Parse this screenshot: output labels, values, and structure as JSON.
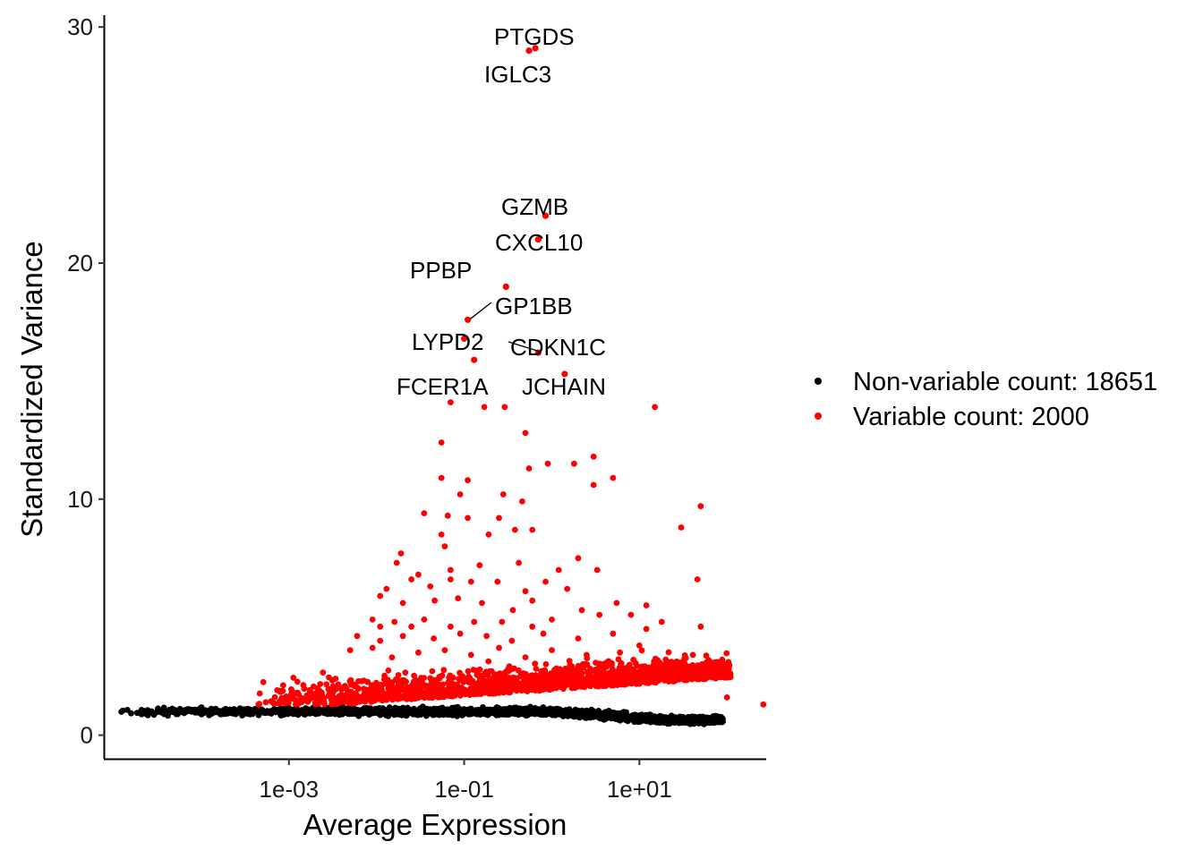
{
  "chart_data": {
    "type": "scatter",
    "xlabel": "Average Expression",
    "ylabel": "Standardized Variance",
    "x_scale": "log10",
    "xlim": [
      7.9e-06,
      280
    ],
    "ylim": [
      -1,
      30.5
    ],
    "x_ticks": [
      {
        "value": 0.001,
        "label": "1e-03"
      },
      {
        "value": 0.1,
        "label": "1e-01"
      },
      {
        "value": 10,
        "label": "1e+01"
      }
    ],
    "y_ticks": [
      {
        "value": 0,
        "label": "0"
      },
      {
        "value": 10,
        "label": "10"
      },
      {
        "value": 20,
        "label": "20"
      },
      {
        "value": 30,
        "label": "30"
      }
    ],
    "grid": false,
    "legend_position": "right",
    "colors": {
      "non_variable": "#000000",
      "variable": "#ff0000"
    },
    "series": [
      {
        "name": "Non-variable count: 18651",
        "color": "#000000",
        "count": 18651
      },
      {
        "name": "Variable count: 2000",
        "color": "#ff0000",
        "count": 2000
      }
    ],
    "labeled_points": [
      {
        "gene": "PTGDS",
        "x": 0.65,
        "y": 29.1
      },
      {
        "gene": "IGLC3",
        "x": 0.55,
        "y": 29.0
      },
      {
        "gene": "GZMB",
        "x": 0.85,
        "y": 22.0
      },
      {
        "gene": "CXCL10",
        "x": 0.7,
        "y": 21.0
      },
      {
        "gene": "PPBP",
        "x": 0.3,
        "y": 19.0
      },
      {
        "gene": "GP1BB",
        "x": 0.11,
        "y": 17.6
      },
      {
        "gene": "LYPD2",
        "x": 0.1,
        "y": 16.8
      },
      {
        "gene": "CDKN1C",
        "x": 0.7,
        "y": 16.2
      },
      {
        "gene": "FCER1A",
        "x": 0.13,
        "y": 15.9
      },
      {
        "gene": "JCHAIN",
        "x": 1.4,
        "y": 15.3
      }
    ],
    "highlight_points": [
      [
        0.07,
        14.1
      ],
      [
        0.17,
        13.9
      ],
      [
        0.29,
        13.9
      ],
      [
        15,
        13.9
      ],
      [
        0.055,
        12.4
      ],
      [
        0.5,
        12.8
      ],
      [
        0.55,
        11.3
      ],
      [
        0.9,
        11.5
      ],
      [
        1.8,
        11.5
      ],
      [
        3,
        11.8
      ],
      [
        3,
        10.6
      ],
      [
        5,
        10.9
      ],
      [
        0.055,
        10.9
      ],
      [
        0.09,
        10.2
      ],
      [
        0.11,
        10.8
      ],
      [
        0.28,
        10.2
      ],
      [
        0.46,
        9.9
      ],
      [
        0.035,
        9.4
      ],
      [
        0.065,
        9.3
      ],
      [
        0.11,
        9.2
      ],
      [
        0.25,
        9.2
      ],
      [
        0.6,
        8.7
      ],
      [
        0.19,
        8.5
      ],
      [
        0.055,
        8.5
      ],
      [
        0.06,
        8.0
      ],
      [
        0.38,
        8.7
      ],
      [
        30,
        8.8
      ],
      [
        50,
        9.7
      ],
      [
        0.019,
        7.7
      ],
      [
        0.017,
        7.3
      ],
      [
        0.03,
        6.8
      ],
      [
        0.07,
        7.0
      ],
      [
        0.15,
        7.2
      ],
      [
        0.42,
        7.3
      ],
      [
        0.85,
        6.5
      ],
      [
        1.2,
        7.0
      ],
      [
        2,
        7.5
      ],
      [
        3.3,
        7.0
      ],
      [
        0.013,
        6.2
      ],
      [
        0.025,
        6.6
      ],
      [
        0.041,
        6.3
      ],
      [
        0.07,
        6.6
      ],
      [
        0.12,
        6.5
      ],
      [
        0.24,
        6.5
      ],
      [
        0.5,
        6.1
      ],
      [
        1.5,
        6.2
      ],
      [
        46,
        6.6
      ],
      [
        0.011,
        5.9
      ],
      [
        0.02,
        5.6
      ],
      [
        0.046,
        5.7
      ],
      [
        0.085,
        5.8
      ],
      [
        0.16,
        5.6
      ],
      [
        0.36,
        5.3
      ],
      [
        0.6,
        5.7
      ],
      [
        2.2,
        5.3
      ],
      [
        5.5,
        5.6
      ],
      [
        12,
        5.5
      ],
      [
        0.009,
        4.9
      ],
      [
        0.011,
        4.6
      ],
      [
        0.016,
        4.8
      ],
      [
        0.025,
        4.6
      ],
      [
        0.035,
        4.9
      ],
      [
        0.07,
        4.6
      ],
      [
        0.13,
        4.8
      ],
      [
        0.27,
        4.8
      ],
      [
        0.6,
        4.6
      ],
      [
        1,
        4.9
      ],
      [
        3.5,
        5.1
      ],
      [
        8,
        5.1
      ],
      [
        18,
        4.8
      ],
      [
        50,
        4.6
      ],
      [
        12,
        4.5
      ],
      [
        0.006,
        4.2
      ],
      [
        0.011,
        4.0
      ],
      [
        0.02,
        4.2
      ],
      [
        0.045,
        4.1
      ],
      [
        0.09,
        4.3
      ],
      [
        0.18,
        4.2
      ],
      [
        0.35,
        4.0
      ],
      [
        0.8,
        4.3
      ],
      [
        2,
        4.1
      ],
      [
        5,
        4.3
      ],
      [
        10,
        3.8
      ],
      [
        0.005,
        3.6
      ],
      [
        0.009,
        3.7
      ],
      [
        0.015,
        3.3
      ],
      [
        0.03,
        3.5
      ],
      [
        0.06,
        3.6
      ],
      [
        0.12,
        3.4
      ],
      [
        0.25,
        3.7
      ],
      [
        0.5,
        3.3
      ],
      [
        1,
        3.6
      ],
      [
        2.5,
        3.4
      ],
      [
        6,
        3.5
      ],
      [
        20,
        3.2
      ],
      [
        60,
        2.5
      ]
    ],
    "scatter_envelopes": {
      "non_variable": {
        "x_range": [
          1.1e-05,
          90
        ],
        "y_center": 1.0,
        "y_spread": 0.25
      },
      "variable": {
        "x_range": [
          0.00045,
          110
        ],
        "y_center": 1.9,
        "y_spread": 1.0
      }
    }
  }
}
